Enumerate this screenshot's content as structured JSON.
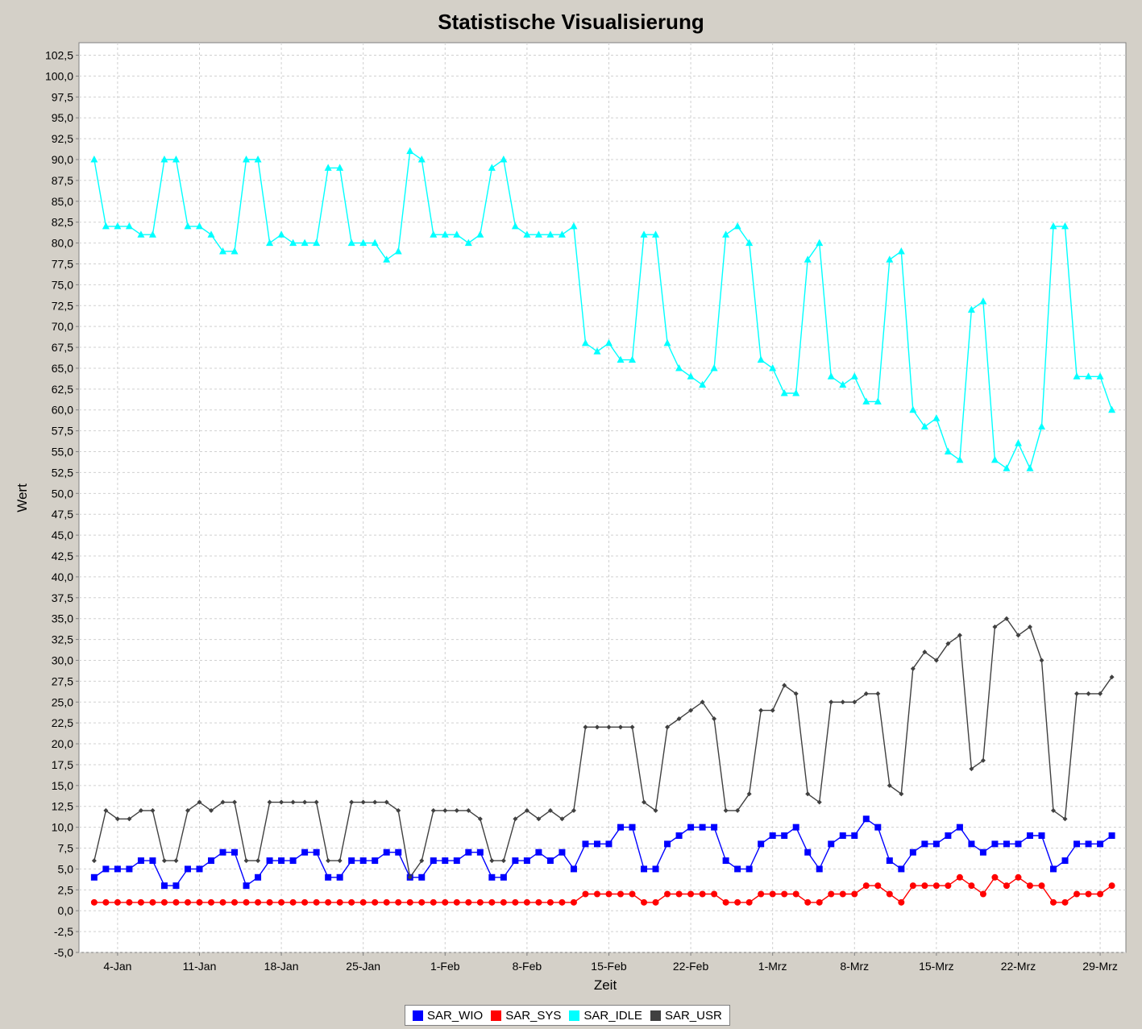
{
  "chart_data": {
    "type": "line",
    "title": "Statistische Visualisierung",
    "xlabel": "Zeit",
    "ylabel": "Wert",
    "ylim": [
      -5,
      104
    ],
    "ytick_step": 2.5,
    "decimal_separator": ",",
    "x_start": "Jan 2",
    "x_ticks": [
      {
        "day": 2,
        "label": "4-Jan"
      },
      {
        "day": 9,
        "label": "11-Jan"
      },
      {
        "day": 16,
        "label": "18-Jan"
      },
      {
        "day": 23,
        "label": "25-Jan"
      },
      {
        "day": 30,
        "label": "1-Feb"
      },
      {
        "day": 37,
        "label": "8-Feb"
      },
      {
        "day": 44,
        "label": "15-Feb"
      },
      {
        "day": 51,
        "label": "22-Feb"
      },
      {
        "day": 58,
        "label": "1-Mrz"
      },
      {
        "day": 65,
        "label": "8-Mrz"
      },
      {
        "day": 72,
        "label": "15-Mrz"
      },
      {
        "day": 79,
        "label": "22-Mrz"
      },
      {
        "day": 86,
        "label": "29-Mrz"
      }
    ],
    "xlim": [
      -1.3,
      88.2
    ],
    "grid": true,
    "legend_position": "bottom",
    "series": [
      {
        "name": "SAR_WIO",
        "color": "#0000ff",
        "marker": "square",
        "values": [
          4,
          5,
          5,
          5,
          6,
          6,
          3,
          3,
          5,
          5,
          6,
          7,
          7,
          3,
          4,
          6,
          6,
          6,
          7,
          7,
          4,
          4,
          6,
          6,
          6,
          7,
          7,
          4,
          4,
          6,
          6,
          6,
          7,
          7,
          4,
          4,
          6,
          6,
          7,
          6,
          7,
          5,
          8,
          8,
          8,
          10,
          10,
          5,
          5,
          8,
          9,
          10,
          10,
          10,
          6,
          5,
          5,
          8,
          9,
          9,
          10,
          7,
          5,
          8,
          9,
          9,
          11,
          10,
          6,
          5,
          7,
          8,
          8,
          9,
          10,
          8,
          7,
          8,
          8,
          8,
          9,
          9,
          5,
          6,
          8,
          8,
          8,
          9
        ]
      },
      {
        "name": "SAR_SYS",
        "color": "#ff0000",
        "marker": "circle",
        "values": [
          1,
          1,
          1,
          1,
          1,
          1,
          1,
          1,
          1,
          1,
          1,
          1,
          1,
          1,
          1,
          1,
          1,
          1,
          1,
          1,
          1,
          1,
          1,
          1,
          1,
          1,
          1,
          1,
          1,
          1,
          1,
          1,
          1,
          1,
          1,
          1,
          1,
          1,
          1,
          1,
          1,
          1,
          2,
          2,
          2,
          2,
          2,
          1,
          1,
          2,
          2,
          2,
          2,
          2,
          1,
          1,
          1,
          2,
          2,
          2,
          2,
          1,
          1,
          2,
          2,
          2,
          3,
          3,
          2,
          1,
          3,
          3,
          3,
          3,
          4,
          3,
          2,
          4,
          3,
          4,
          3,
          3,
          1,
          1,
          2,
          2,
          2,
          3
        ]
      },
      {
        "name": "SAR_IDLE",
        "color": "#00ffff",
        "marker": "triangle",
        "values": [
          90,
          82,
          82,
          82,
          81,
          81,
          90,
          90,
          82,
          82,
          81,
          79,
          79,
          90,
          90,
          80,
          81,
          80,
          80,
          80,
          89,
          89,
          80,
          80,
          80,
          78,
          79,
          91,
          90,
          81,
          81,
          81,
          80,
          81,
          89,
          90,
          82,
          81,
          81,
          81,
          81,
          82,
          68,
          67,
          68,
          66,
          66,
          81,
          81,
          68,
          65,
          64,
          63,
          65,
          81,
          82,
          80,
          66,
          65,
          62,
          62,
          78,
          80,
          64,
          63,
          64,
          61,
          61,
          78,
          79,
          60,
          58,
          59,
          55,
          54,
          72,
          73,
          54,
          53,
          56,
          53,
          58,
          82,
          82,
          64,
          64,
          64,
          60
        ]
      },
      {
        "name": "SAR_USR",
        "color": "#404040",
        "marker": "diamond",
        "values": [
          6,
          12,
          11,
          11,
          12,
          12,
          6,
          6,
          12,
          13,
          12,
          13,
          13,
          6,
          6,
          13,
          13,
          13,
          13,
          13,
          6,
          6,
          13,
          13,
          13,
          13,
          12,
          4,
          6,
          12,
          12,
          12,
          12,
          11,
          6,
          6,
          11,
          12,
          11,
          12,
          11,
          12,
          22,
          22,
          22,
          22,
          22,
          13,
          12,
          22,
          23,
          24,
          25,
          23,
          12,
          12,
          14,
          24,
          24,
          27,
          26,
          14,
          13,
          25,
          25,
          25,
          26,
          26,
          15,
          14,
          29,
          31,
          30,
          32,
          33,
          17,
          18,
          34,
          35,
          33,
          34,
          30,
          12,
          11,
          26,
          26,
          26,
          28
        ]
      }
    ]
  }
}
